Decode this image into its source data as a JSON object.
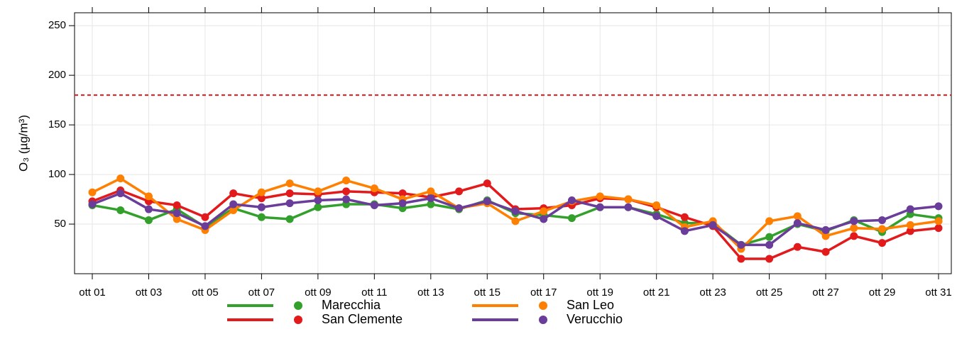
{
  "chart_data": {
    "type": "line",
    "y_label": "O₃ (µg/m³)",
    "categories": [
      "ott 01",
      null,
      "ott 03",
      null,
      "ott 05",
      null,
      "ott 07",
      null,
      "ott 09",
      null,
      "ott 11",
      null,
      "ott 13",
      null,
      "ott 15",
      null,
      "ott 17",
      null,
      "ott 19",
      null,
      "ott 21",
      null,
      "ott 23",
      null,
      "ott 25",
      null,
      "ott 27",
      null,
      "ott 29",
      null,
      "ott 31"
    ],
    "series": [
      {
        "name": "Marecchia",
        "color": "#33a02c",
        "values": [
          69,
          64,
          54,
          65,
          47,
          66,
          57,
          55,
          67,
          70,
          70,
          66,
          70,
          65,
          74,
          61,
          59,
          56,
          67,
          67,
          60,
          51,
          51,
          29,
          37,
          50,
          43,
          54,
          42,
          60,
          56
        ]
      },
      {
        "name": "San Clemente",
        "color": "#e31a1c",
        "values": [
          73,
          84,
          73,
          69,
          57,
          81,
          76,
          81,
          80,
          83,
          82,
          81,
          77,
          83,
          91,
          65,
          66,
          69,
          76,
          75,
          67,
          57,
          48,
          15,
          15,
          27,
          22,
          38,
          31,
          43,
          46
        ]
      },
      {
        "name": "San Leo",
        "color": "#ff7f00",
        "values": [
          82,
          96,
          78,
          55,
          44,
          64,
          82,
          91,
          83,
          94,
          86,
          75,
          83,
          66,
          71,
          53,
          63,
          73,
          78,
          75,
          69,
          47,
          53,
          25,
          53,
          58,
          38,
          46,
          45,
          49,
          53
        ]
      },
      {
        "name": "Verucchio",
        "color": "#6a3d9a",
        "values": [
          70,
          81,
          65,
          61,
          48,
          70,
          67,
          71,
          74,
          75,
          69,
          71,
          76,
          66,
          73,
          63,
          55,
          74,
          67,
          67,
          58,
          43,
          49,
          29,
          29,
          51,
          44,
          53,
          54,
          65,
          68
        ]
      }
    ],
    "reference_line": {
      "value": 180,
      "color": "#e31a1c"
    },
    "ylim": [
      0,
      263
    ],
    "yticks": [
      50,
      100,
      150,
      200,
      250
    ],
    "grid": true,
    "legend": "bottom"
  }
}
